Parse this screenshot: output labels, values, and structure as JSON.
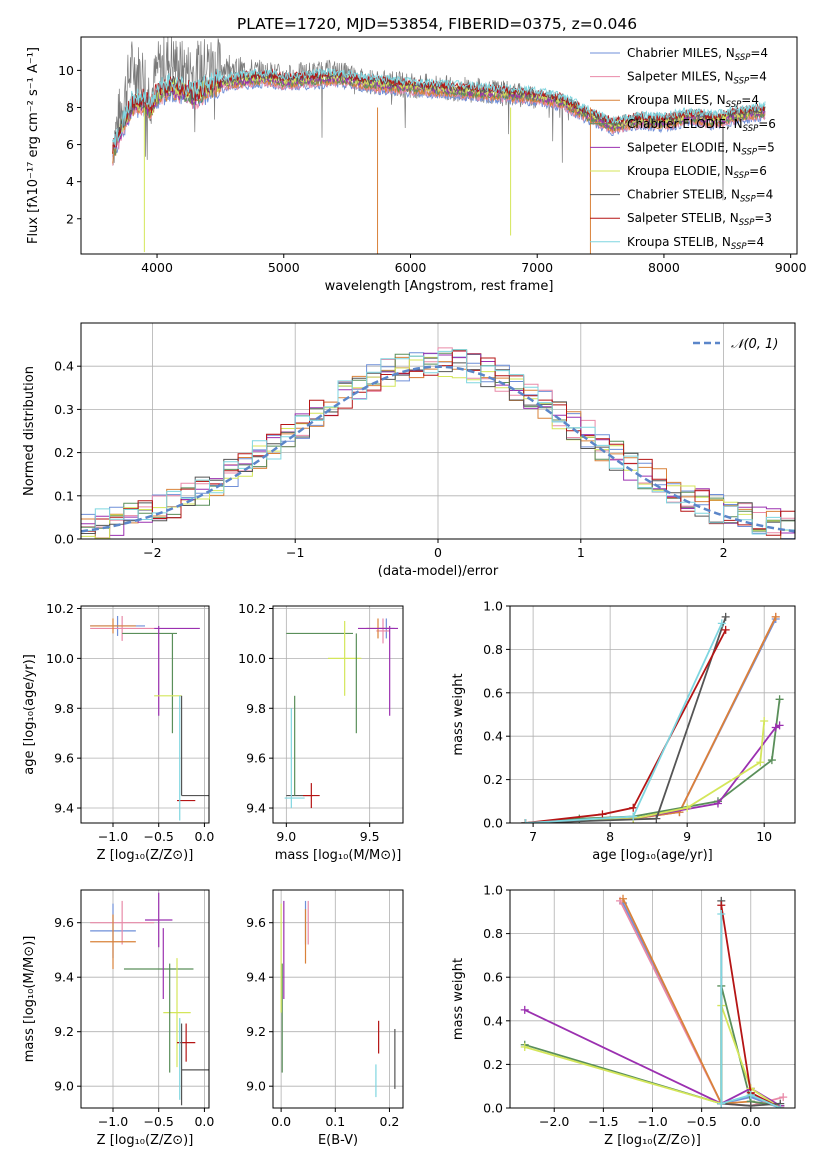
{
  "figure": {
    "title": "PLATE=1720, MJD=53854, FIBERID=0375, z=0.046"
  },
  "colors": [
    "#6f8fd8",
    "#e98aa8",
    "#d9823a",
    "#5a8f5a",
    "#9b30b0",
    "#d4e65a",
    "#555555",
    "#b51515",
    "#7fd6e0"
  ],
  "chart_data": [
    {
      "id": "spectrum",
      "type": "line",
      "xlabel": "wavelength [Angstrom, rest frame]",
      "ylabel": "Flux [fλ10⁻¹⁷ erg cm⁻² s⁻¹ A⁻¹]",
      "xlim": [
        3400,
        9050
      ],
      "ylim": [
        0.1,
        11.8
      ],
      "xticks": [
        4000,
        5000,
        6000,
        7000,
        8000,
        9000
      ],
      "yticks": [
        2,
        4,
        6,
        8,
        10
      ],
      "grid": false,
      "legend": "top-right",
      "data_flux": {
        "x": [
          3650,
          3700,
          3800,
          3900,
          3950,
          4000,
          4100,
          4200,
          4300,
          4400,
          4500,
          4700,
          4900,
          5000,
          5200,
          5400,
          5600,
          5800,
          6000,
          6200,
          6400,
          6600,
          6800,
          7000,
          7200,
          7400,
          7600,
          7800,
          8000,
          8200,
          8400,
          8600,
          8800
        ],
        "y": [
          6.0,
          7.5,
          10.2,
          9.8,
          8.5,
          10.0,
          10.6,
          10.1,
          9.9,
          10.4,
          10.2,
          10.0,
          9.8,
          9.6,
          9.8,
          9.9,
          9.5,
          9.3,
          9.2,
          9.1,
          9.0,
          8.9,
          8.7,
          8.6,
          8.3,
          7.6,
          7.1,
          7.4,
          7.3,
          7.6,
          7.4,
          7.7,
          7.9
        ]
      },
      "model_flux": {
        "x": [
          3650,
          3700,
          3800,
          3900,
          3950,
          4000,
          4100,
          4200,
          4300,
          4400,
          4500,
          4700,
          4900,
          5000,
          5200,
          5400,
          5600,
          5800,
          6000,
          6200,
          6400,
          6600,
          6800,
          7000,
          7200,
          7400,
          7600,
          7800,
          8000,
          8200,
          8400,
          8600,
          8800
        ],
        "y": [
          5.6,
          6.5,
          8.1,
          8.3,
          7.8,
          8.7,
          9.1,
          8.9,
          8.6,
          9.0,
          9.3,
          9.5,
          9.6,
          9.4,
          9.5,
          9.6,
          9.4,
          9.2,
          9.1,
          9.0,
          8.9,
          8.8,
          8.7,
          8.6,
          8.3,
          7.6,
          7.0,
          7.3,
          7.2,
          7.5,
          7.3,
          7.6,
          7.8
        ]
      },
      "series": [
        {
          "label": "Chabrier MILES, N",
          "sub": "SSP",
          "count": "=4"
        },
        {
          "label": "Salpeter MILES, N",
          "sub": "SSP",
          "count": "=4"
        },
        {
          "label": "Kroupa MILES, N",
          "sub": "SSP",
          "count": "=4"
        },
        {
          "label": "Chabrier ELODIE, N",
          "sub": "SSP",
          "count": "=6"
        },
        {
          "label": "Salpeter ELODIE, N",
          "sub": "SSP",
          "count": "=5"
        },
        {
          "label": "Kroupa ELODIE, N",
          "sub": "SSP",
          "count": "=6"
        },
        {
          "label": "Chabrier STELIB, N",
          "sub": "SSP",
          "count": "=4"
        },
        {
          "label": "Salpeter STELIB, N",
          "sub": "SSP",
          "count": "=3"
        },
        {
          "label": "Kroupa STELIB, N",
          "sub": "SSP",
          "count": "=4"
        }
      ]
    },
    {
      "id": "residuals",
      "type": "bar",
      "xlabel": "(data-model)/error",
      "ylabel": "Normed distribution",
      "xlim": [
        -2.5,
        2.5
      ],
      "ylim": [
        0,
        0.5
      ],
      "xticks": [
        -2,
        -1,
        0,
        1,
        2
      ],
      "yticks": [
        0.0,
        0.1,
        0.2,
        0.3,
        0.4
      ],
      "xtick_labels": [
        "−2",
        "−1",
        "0",
        "1",
        "2"
      ],
      "ytick_labels": [
        "0.0",
        "0.1",
        "0.2",
        "0.3",
        "0.4"
      ],
      "grid": true,
      "legend": "top-right",
      "normal_label": "𝒩(0, 1)"
    },
    {
      "id": "age_vs_Z",
      "type": "scatter",
      "xlabel": "Z [log₁₀(Z/Z⊙)]",
      "ylabel": "age  [log₁₀(age/yr)]",
      "xlim": [
        -1.35,
        0.05
      ],
      "ylim": [
        9.34,
        10.21
      ],
      "xticks": [
        -1.0,
        -0.5,
        0.0
      ],
      "yticks": [
        9.4,
        9.6,
        9.8,
        10.0,
        10.2
      ],
      "xtick_labels": [
        "−1.0",
        "−0.5",
        "0.0"
      ],
      "ytick_labels": [
        "9.4",
        "9.6",
        "9.8",
        "10.0",
        "10.2"
      ],
      "grid": true,
      "points": [
        {
          "s": 0,
          "x": -0.95,
          "xe": 0.3,
          "y": 10.13,
          "ye": 0.04
        },
        {
          "s": 1,
          "x": -0.9,
          "xe": 0.35,
          "y": 10.12,
          "ye": 0.05
        },
        {
          "s": 2,
          "x": -1.0,
          "xe": 0.25,
          "y": 10.13,
          "ye": 0.03
        },
        {
          "s": 3,
          "x": -0.6,
          "xe": 0.3,
          "y": 10.1,
          "ye": 0.0
        },
        {
          "s": 4,
          "x": -0.3,
          "xe": 0.25,
          "y": 10.12,
          "ye": 0.0
        },
        {
          "s": 3,
          "x": -0.35,
          "xe": 0.0,
          "y": 9.9,
          "ye": 0.2
        },
        {
          "s": 4,
          "x": -0.5,
          "xe": 0.0,
          "y": 9.95,
          "ye": 0.18
        },
        {
          "s": 5,
          "x": -0.4,
          "xe": 0.15,
          "y": 9.85,
          "ye": 0.0
        },
        {
          "s": 6,
          "x": -0.1,
          "xe": 0.15,
          "y": 9.45,
          "ye": 0.0
        },
        {
          "s": 7,
          "x": -0.2,
          "xe": 0.1,
          "y": 9.43,
          "ye": 0.0
        },
        {
          "s": 8,
          "x": -0.27,
          "xe": 0.0,
          "y": 9.6,
          "ye": 0.25
        },
        {
          "s": 6,
          "x": -0.25,
          "xe": 0.0,
          "y": 9.65,
          "ye": 0.2
        }
      ]
    },
    {
      "id": "age_vs_mass",
      "type": "scatter",
      "xlabel": "mass [log₁₀(M/M⊙)]",
      "ylabel": "",
      "xlim": [
        8.92,
        9.7
      ],
      "ylim": [
        9.34,
        10.21
      ],
      "xticks": [
        9.0,
        9.5
      ],
      "yticks": [
        9.4,
        9.6,
        9.8,
        10.0,
        10.2
      ],
      "xtick_labels": [
        "9.0",
        "9.5"
      ],
      "ytick_labels": [
        "9.4",
        "9.6",
        "9.8",
        "10.0",
        "10.2"
      ],
      "grid": true,
      "points": [
        {
          "s": 0,
          "x": 9.6,
          "xe": 0.05,
          "y": 10.12,
          "ye": 0.04
        },
        {
          "s": 1,
          "x": 9.58,
          "xe": 0.04,
          "y": 10.11,
          "ye": 0.05
        },
        {
          "s": 2,
          "x": 9.55,
          "xe": 0.07,
          "y": 10.12,
          "ye": 0.04
        },
        {
          "s": 3,
          "x": 9.2,
          "xe": 0.2,
          "y": 10.1,
          "ye": 0.0
        },
        {
          "s": 4,
          "x": 9.55,
          "xe": 0.12,
          "y": 10.12,
          "ye": 0.0
        },
        {
          "s": 5,
          "x": 9.35,
          "xe": 0.1,
          "y": 10.0,
          "ye": 0.15
        },
        {
          "s": 3,
          "x": 9.42,
          "xe": 0.0,
          "y": 9.9,
          "ye": 0.2
        },
        {
          "s": 4,
          "x": 9.62,
          "xe": 0.0,
          "y": 9.95,
          "ye": 0.18
        },
        {
          "s": 6,
          "x": 9.08,
          "xe": 0.08,
          "y": 9.45,
          "ye": 0.0
        },
        {
          "s": 7,
          "x": 9.15,
          "xe": 0.05,
          "y": 9.45,
          "ye": 0.05
        },
        {
          "s": 8,
          "x": 9.05,
          "xe": 0.06,
          "y": 9.44,
          "ye": 0.0
        },
        {
          "s": 3,
          "x": 9.05,
          "xe": 0.0,
          "y": 9.65,
          "ye": 0.2
        },
        {
          "s": 8,
          "x": 9.03,
          "xe": 0.0,
          "y": 9.6,
          "ye": 0.2
        }
      ]
    },
    {
      "id": "mw_vs_age",
      "type": "line",
      "xlabel": "age  [log₁₀(age/yr)]",
      "ylabel": "mass weight",
      "xlim": [
        6.7,
        10.4
      ],
      "ylim": [
        0,
        1
      ],
      "xticks": [
        7,
        8,
        9,
        10
      ],
      "yticks": [
        0.0,
        0.2,
        0.4,
        0.6,
        0.8,
        1.0
      ],
      "xtick_labels": [
        "7",
        "8",
        "9",
        "10"
      ],
      "ytick_labels": [
        "0.0",
        "0.2",
        "0.4",
        "0.6",
        "0.8",
        "1.0"
      ],
      "grid": true,
      "series": [
        {
          "s": 0,
          "x": [
            6.9,
            8.3,
            8.9,
            10.15
          ],
          "y": [
            0.0,
            0.02,
            0.05,
            0.94
          ]
        },
        {
          "s": 1,
          "x": [
            6.9,
            8.3,
            8.9,
            10.15
          ],
          "y": [
            0.0,
            0.02,
            0.05,
            0.95
          ]
        },
        {
          "s": 2,
          "x": [
            6.9,
            8.3,
            8.9,
            10.15
          ],
          "y": [
            0.0,
            0.02,
            0.05,
            0.95
          ]
        },
        {
          "s": 3,
          "x": [
            6.9,
            7.6,
            8.3,
            9.4,
            10.1,
            10.2
          ],
          "y": [
            0.0,
            0.02,
            0.03,
            0.1,
            0.29,
            0.57
          ]
        },
        {
          "s": 4,
          "x": [
            6.9,
            8.3,
            9.4,
            10.15,
            10.2
          ],
          "y": [
            0.0,
            0.02,
            0.09,
            0.44,
            0.45
          ]
        },
        {
          "s": 5,
          "x": [
            6.9,
            8.3,
            9.0,
            9.95,
            10.0
          ],
          "y": [
            0.0,
            0.02,
            0.07,
            0.28,
            0.47
          ]
        },
        {
          "s": 6,
          "x": [
            6.9,
            8.6,
            9.5
          ],
          "y": [
            0.0,
            0.02,
            0.95
          ]
        },
        {
          "s": 7,
          "x": [
            6.9,
            7.9,
            8.3,
            9.5
          ],
          "y": [
            0.0,
            0.04,
            0.07,
            0.89
          ]
        },
        {
          "s": 8,
          "x": [
            6.9,
            8.3,
            9.45
          ],
          "y": [
            0.0,
            0.03,
            0.92
          ]
        }
      ]
    },
    {
      "id": "mass_vs_Z",
      "type": "scatter",
      "xlabel": "Z [log₁₀(Z/Z⊙)]",
      "ylabel": "mass [log₁₀(M/M⊙)]",
      "xlim": [
        -1.35,
        0.05
      ],
      "ylim": [
        8.92,
        9.72
      ],
      "xticks": [
        -1.0,
        -0.5,
        0.0
      ],
      "yticks": [
        9.0,
        9.2,
        9.4,
        9.6
      ],
      "xtick_labels": [
        "−1.0",
        "−0.5",
        "0.0"
      ],
      "ytick_labels": [
        "9.0",
        "9.2",
        "9.4",
        "9.6"
      ],
      "grid": true,
      "points": [
        {
          "s": 0,
          "x": -1.0,
          "xe": 0.25,
          "y": 9.57,
          "ye": 0.1
        },
        {
          "s": 1,
          "x": -0.9,
          "xe": 0.35,
          "y": 9.6,
          "ye": 0.08
        },
        {
          "s": 2,
          "x": -1.0,
          "xe": 0.25,
          "y": 9.53,
          "ye": 0.1
        },
        {
          "s": 3,
          "x": -0.5,
          "xe": 0.38,
          "y": 9.43,
          "ye": 0.0
        },
        {
          "s": 4,
          "x": -0.5,
          "xe": 0.15,
          "y": 9.61,
          "ye": 0.1
        },
        {
          "s": 4,
          "x": -0.45,
          "xe": 0.0,
          "y": 9.45,
          "ye": 0.13
        },
        {
          "s": 5,
          "x": -0.3,
          "xe": 0.15,
          "y": 9.27,
          "ye": 0.2
        },
        {
          "s": 3,
          "x": -0.38,
          "xe": 0.0,
          "y": 9.25,
          "ye": 0.2
        },
        {
          "s": 6,
          "x": -0.1,
          "xe": 0.15,
          "y": 9.06,
          "ye": 0.0
        },
        {
          "s": 7,
          "x": -0.2,
          "xe": 0.1,
          "y": 9.16,
          "ye": 0.07
        },
        {
          "s": 8,
          "x": -0.27,
          "xe": 0.0,
          "y": 9.1,
          "ye": 0.15
        },
        {
          "s": 6,
          "x": -0.25,
          "xe": 0.0,
          "y": 9.08,
          "ye": 0.15
        }
      ]
    },
    {
      "id": "mass_vs_EBV",
      "type": "scatter",
      "xlabel": "E(B-V)",
      "ylabel": "",
      "xlim": [
        -0.015,
        0.225
      ],
      "ylim": [
        8.92,
        9.72
      ],
      "xticks": [
        0.0,
        0.1,
        0.2
      ],
      "yticks": [
        9.0,
        9.2,
        9.4,
        9.6
      ],
      "xtick_labels": [
        "0.0",
        "0.1",
        "0.2"
      ],
      "ytick_labels": [
        "9.0",
        "9.2",
        "9.4",
        "9.6"
      ],
      "grid": true,
      "points": [
        {
          "s": 0,
          "x": 0.045,
          "xe": 0.0,
          "y": 9.6,
          "ye": 0.08
        },
        {
          "s": 1,
          "x": 0.05,
          "xe": 0.0,
          "y": 9.6,
          "ye": 0.08
        },
        {
          "s": 2,
          "x": 0.045,
          "xe": 0.0,
          "y": 9.55,
          "ye": 0.1
        },
        {
          "s": 3,
          "x": 0.002,
          "xe": 0.0,
          "y": 9.25,
          "ye": 0.2
        },
        {
          "s": 4,
          "x": 0.005,
          "xe": 0.0,
          "y": 9.5,
          "ye": 0.18
        },
        {
          "s": 5,
          "x": 0.0,
          "xe": 0.0,
          "y": 9.47,
          "ye": 0.2
        },
        {
          "s": 6,
          "x": 0.21,
          "xe": 0.0,
          "y": 9.1,
          "ye": 0.11
        },
        {
          "s": 7,
          "x": 0.18,
          "xe": 0.0,
          "y": 9.18,
          "ye": 0.06
        },
        {
          "s": 8,
          "x": 0.175,
          "xe": 0.0,
          "y": 9.02,
          "ye": 0.06
        }
      ]
    },
    {
      "id": "mw_vs_Z",
      "type": "line",
      "xlabel": "Z [log₁₀(Z/Z⊙)]",
      "ylabel": "mass weight",
      "xlim": [
        -2.45,
        0.45
      ],
      "ylim": [
        0,
        1
      ],
      "xticks": [
        -2.0,
        -1.5,
        -1.0,
        -0.5,
        0.0
      ],
      "yticks": [
        0.0,
        0.2,
        0.4,
        0.6,
        0.8,
        1.0
      ],
      "xtick_labels": [
        "−2.0",
        "−1.5",
        "−1.0",
        "−0.5",
        "0.0"
      ],
      "ytick_labels": [
        "0.0",
        "0.2",
        "0.4",
        "0.6",
        "0.8",
        "1.0"
      ],
      "grid": true,
      "series": [
        {
          "s": 0,
          "x": [
            -1.3,
            -0.3,
            0.0,
            0.3
          ],
          "y": [
            0.94,
            0.02,
            0.05,
            0.0
          ]
        },
        {
          "s": 1,
          "x": [
            -1.33,
            -0.3,
            0.0,
            0.33
          ],
          "y": [
            0.95,
            0.02,
            0.01,
            0.05
          ]
        },
        {
          "s": 2,
          "x": [
            -1.3,
            -0.3,
            0.0,
            0.3
          ],
          "y": [
            0.96,
            0.02,
            0.03,
            0.01
          ]
        },
        {
          "s": 3,
          "x": [
            -2.3,
            -0.3,
            -0.3,
            0.0,
            0.3
          ],
          "y": [
            0.29,
            0.02,
            0.56,
            0.03,
            0.01
          ]
        },
        {
          "s": 4,
          "x": [
            -2.3,
            -0.3,
            0.0,
            0.3
          ],
          "y": [
            0.45,
            0.02,
            0.09,
            0.01
          ]
        },
        {
          "s": 5,
          "x": [
            -2.3,
            -0.3,
            -0.3,
            0.0,
            0.3
          ],
          "y": [
            0.28,
            0.02,
            0.47,
            0.09,
            0.0
          ]
        },
        {
          "s": 6,
          "x": [
            -0.3,
            -0.3,
            0.0,
            0.3
          ],
          "y": [
            0.95,
            0.02,
            0.01,
            0.02
          ]
        },
        {
          "s": 7,
          "x": [
            -0.3,
            0.0,
            0.3
          ],
          "y": [
            0.93,
            0.07,
            0.0
          ]
        },
        {
          "s": 8,
          "x": [
            -0.3,
            -0.3,
            0.0,
            0.3
          ],
          "y": [
            0.89,
            0.02,
            0.06,
            0.0
          ]
        }
      ]
    }
  ]
}
